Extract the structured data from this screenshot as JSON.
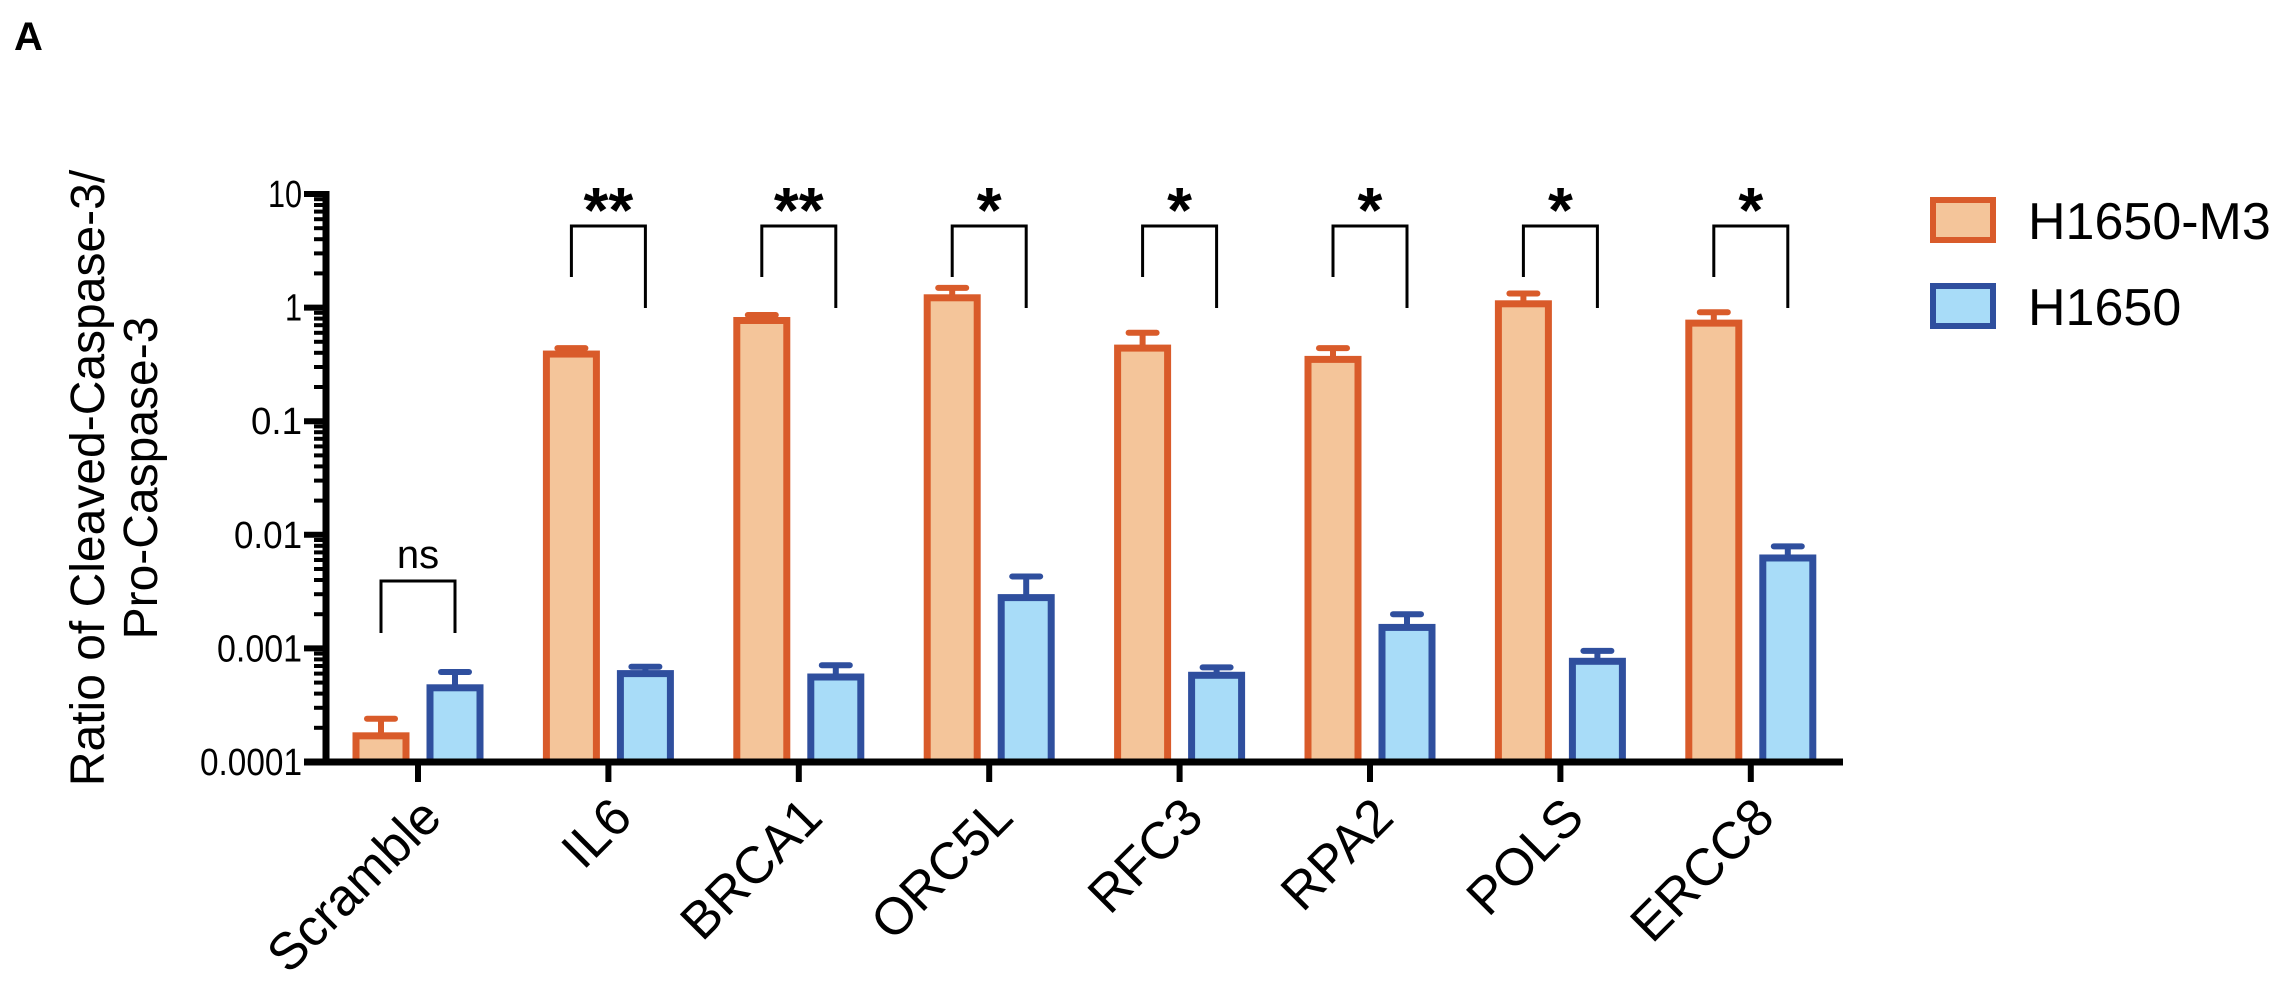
{
  "panel_label": "A",
  "chart_data": {
    "type": "bar",
    "title": "",
    "xlabel": "",
    "ylabel_lines": [
      "Ratio of  Cleaved-Caspase-3/",
      "Pro-Caspase-3"
    ],
    "yscale": "log",
    "ylim": [
      0.0001,
      10
    ],
    "ytick_labels": [
      "0.0001",
      "0.001",
      "0.01",
      "0.1",
      "1",
      "10"
    ],
    "ytick_values": [
      0.0001,
      0.001,
      0.01,
      0.1,
      1,
      10
    ],
    "grid": false,
    "legend_position": "top-right",
    "categories": [
      "Scramble",
      "IL6",
      "BRCA1",
      "ORC5L",
      "RFC3",
      "RPA2",
      "POLS",
      "ERCC8"
    ],
    "series": [
      {
        "name": "H1650-M3",
        "fill": "#F4C59A",
        "stroke": "#D95B2A",
        "values": [
          0.00017,
          0.39,
          0.77,
          1.22,
          0.44,
          0.35,
          1.08,
          0.73
        ],
        "error_upper": [
          0.00024,
          0.44,
          0.86,
          1.49,
          0.6,
          0.44,
          1.33,
          0.91
        ]
      },
      {
        "name": "H1650",
        "fill": "#A8DCF8",
        "stroke": "#2F4F9E",
        "values": [
          0.00045,
          0.0006,
          0.00056,
          0.0028,
          0.00058,
          0.00153,
          0.00077,
          0.00625
        ],
        "error_upper": [
          0.00062,
          0.00069,
          0.00071,
          0.0043,
          0.00068,
          0.002,
          0.00095,
          0.0079
        ]
      }
    ],
    "significance": [
      "ns",
      "**",
      "**",
      "*",
      "*",
      "*",
      "*",
      "*"
    ]
  }
}
